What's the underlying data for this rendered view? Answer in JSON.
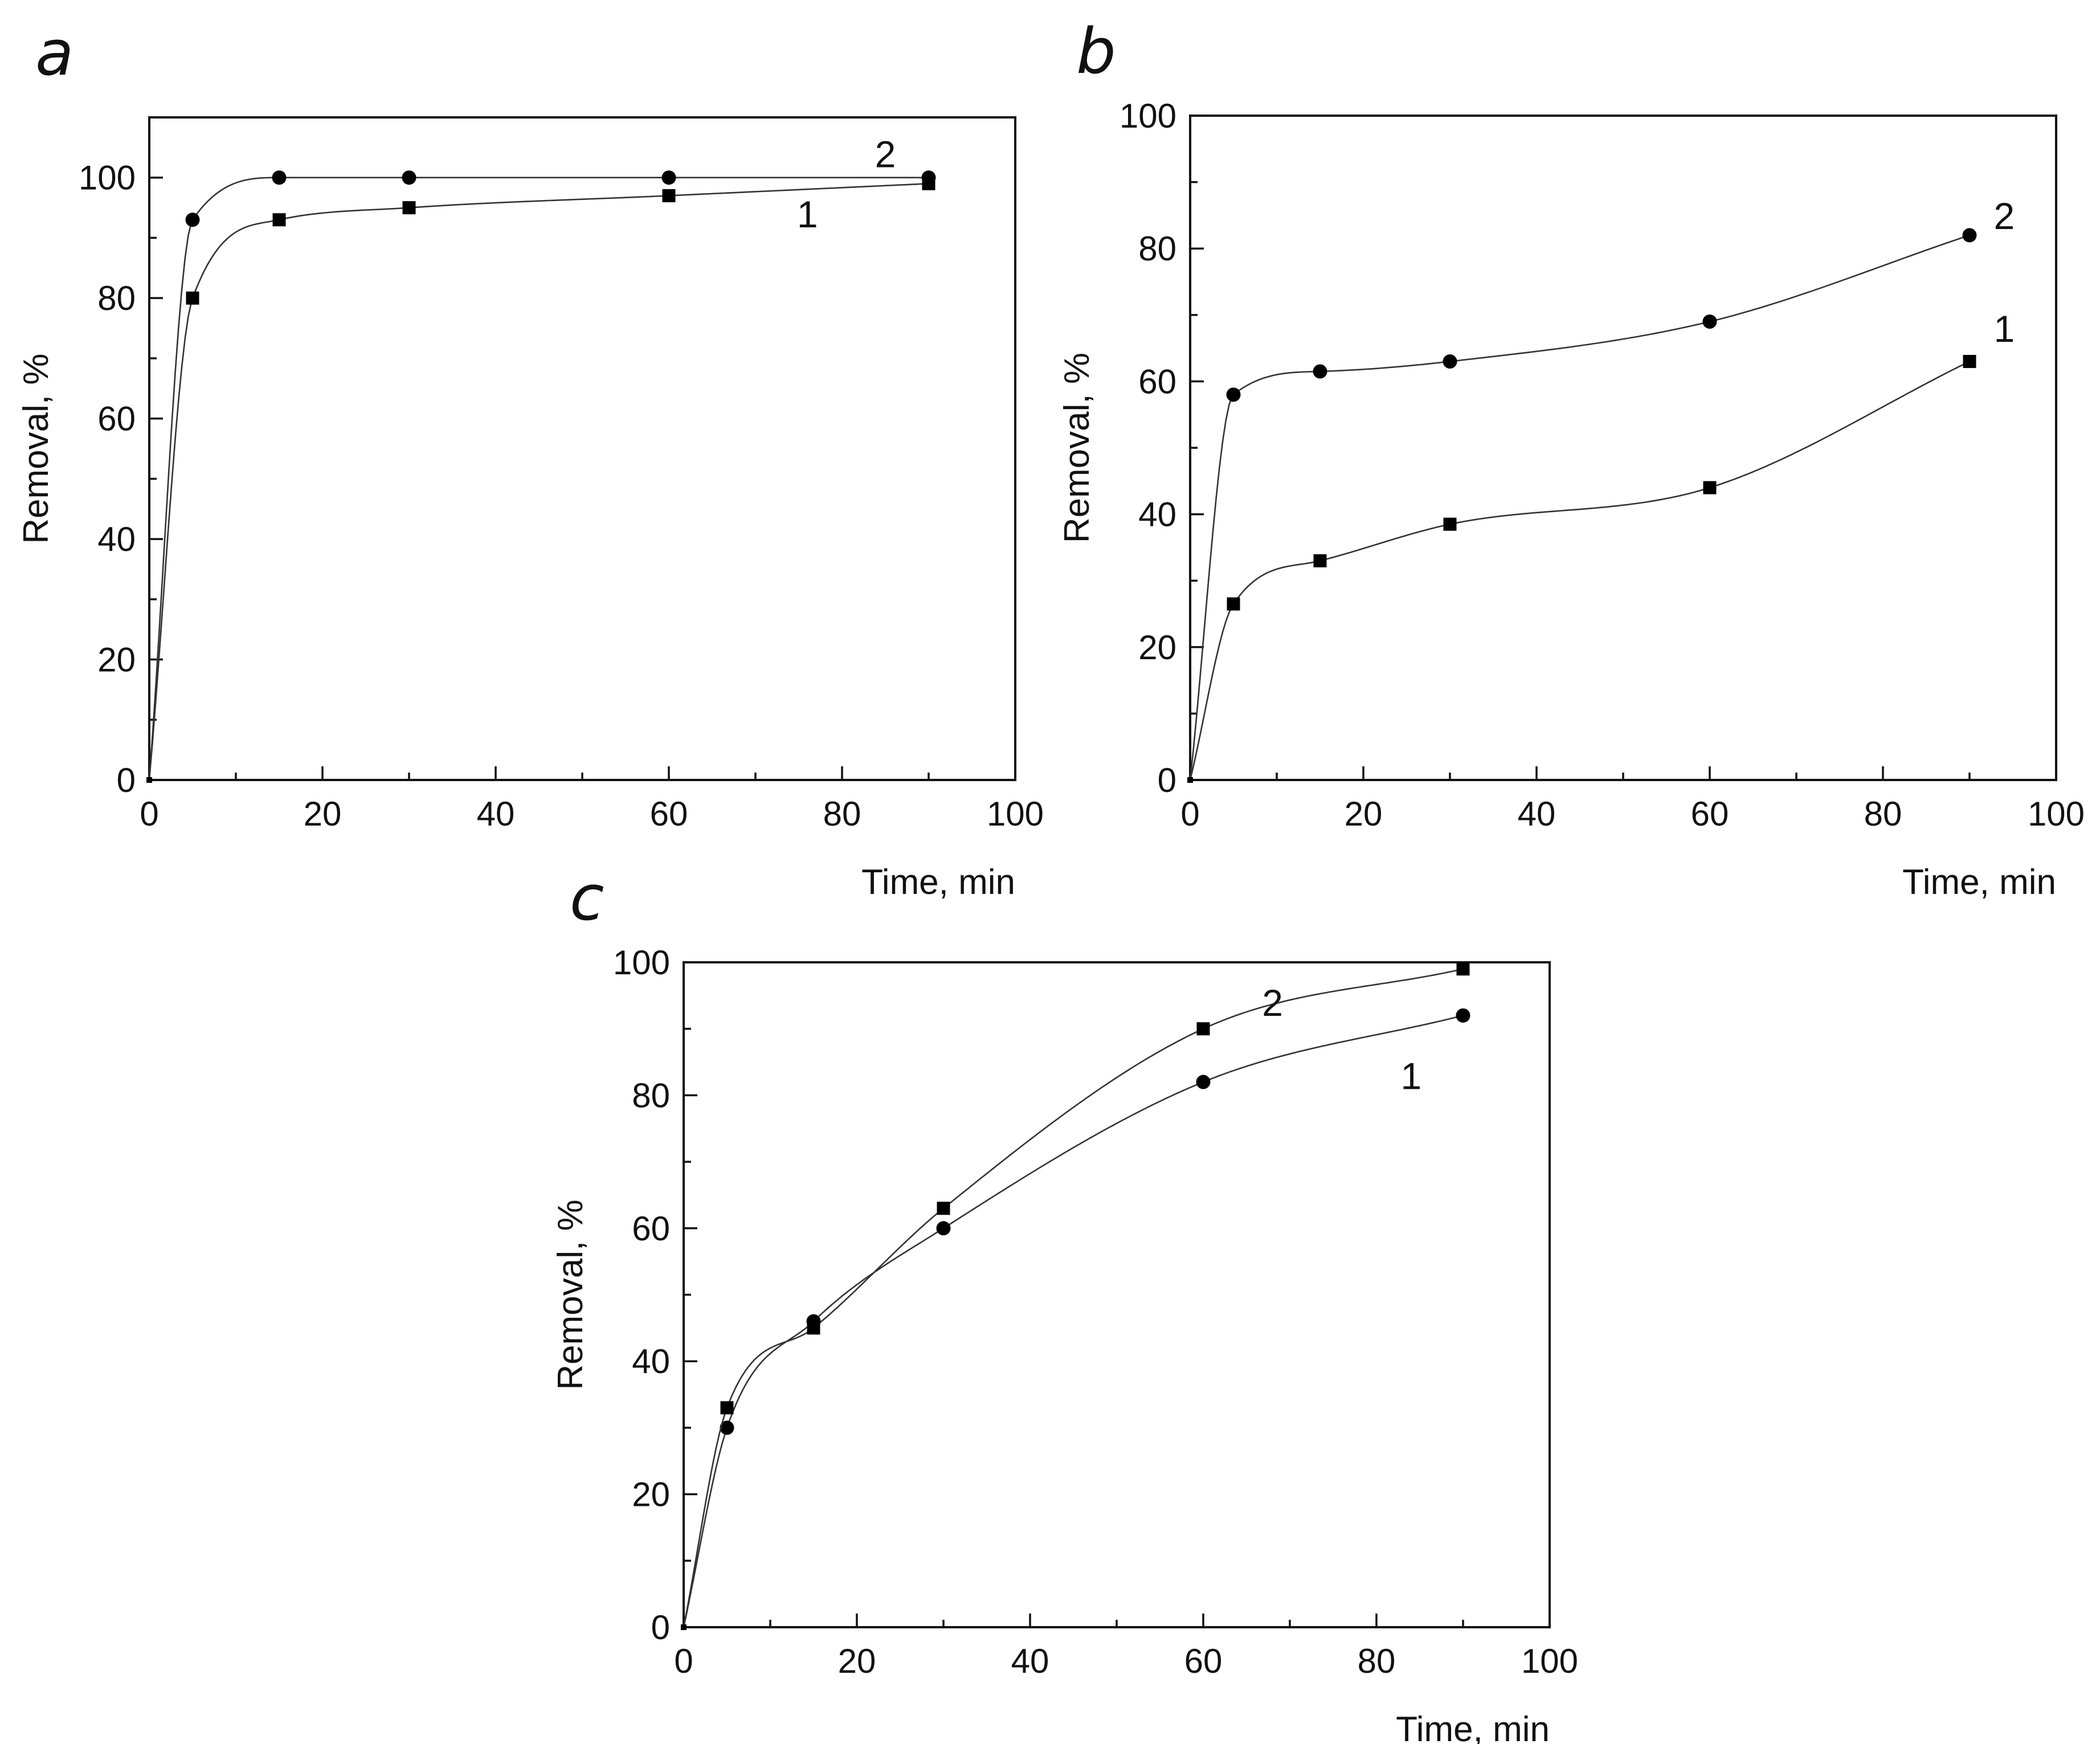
{
  "chart_data": [
    {
      "type": "scatter",
      "panel": "a",
      "xlabel": "Time, min",
      "ylabel": "Removal, %",
      "xlim": [
        0,
        100
      ],
      "ylim": [
        0,
        110
      ],
      "xticks": [
        0,
        20,
        40,
        60,
        80,
        100
      ],
      "yticks": [
        0,
        20,
        40,
        60,
        80,
        100
      ],
      "xtick_labels": [
        "0",
        "20",
        "40",
        "60",
        "80",
        "100"
      ],
      "ytick_labels": [
        "0",
        "20",
        "40",
        "60",
        "80",
        "100"
      ],
      "series": [
        {
          "name": "1",
          "marker": "square",
          "x": [
            0,
            5,
            15,
            30,
            60,
            90
          ],
          "y": [
            0,
            80,
            93,
            95,
            97,
            99
          ],
          "label_at": [
            76,
            94
          ]
        },
        {
          "name": "2",
          "marker": "circle",
          "x": [
            0,
            5,
            15,
            30,
            60,
            90
          ],
          "y": [
            0,
            93,
            100,
            100,
            100,
            100
          ],
          "label_at": [
            85,
            104
          ]
        }
      ]
    },
    {
      "type": "scatter",
      "panel": "b",
      "xlabel": "Time, min",
      "ylabel": "Removal, %",
      "xlim": [
        0,
        100
      ],
      "ylim": [
        0,
        100
      ],
      "xticks": [
        0,
        20,
        40,
        60,
        80,
        100
      ],
      "yticks": [
        0,
        20,
        40,
        60,
        80,
        100
      ],
      "xtick_labels": [
        "0",
        "20",
        "40",
        "60",
        "80",
        "100"
      ],
      "ytick_labels": [
        "0",
        "20",
        "40",
        "60",
        "80",
        "100"
      ],
      "series": [
        {
          "name": "1",
          "marker": "square",
          "x": [
            0,
            5,
            15,
            30,
            60,
            90
          ],
          "y": [
            0,
            26.5,
            33,
            38.5,
            44,
            63
          ],
          "label_at": [
            94,
            68
          ]
        },
        {
          "name": "2",
          "marker": "circle",
          "x": [
            0,
            5,
            15,
            30,
            60,
            90
          ],
          "y": [
            0,
            58,
            61.5,
            63,
            69,
            82
          ],
          "label_at": [
            94,
            85
          ]
        }
      ]
    },
    {
      "type": "scatter",
      "panel": "c",
      "xlabel": "Time, min",
      "ylabel": "Removal, %",
      "xlim": [
        0,
        100
      ],
      "ylim": [
        0,
        100
      ],
      "xticks": [
        0,
        20,
        40,
        60,
        80,
        100
      ],
      "yticks": [
        0,
        20,
        40,
        60,
        80,
        100
      ],
      "xtick_labels": [
        "0",
        "20",
        "40",
        "60",
        "80",
        "100"
      ],
      "ytick_labels": [
        "0",
        "20",
        "40",
        "60",
        "80",
        "100"
      ],
      "series": [
        {
          "name": "1",
          "marker": "circle",
          "x": [
            0,
            5,
            15,
            30,
            60,
            90
          ],
          "y": [
            0,
            30,
            46,
            60,
            82,
            92
          ],
          "label_at": [
            84,
            83
          ]
        },
        {
          "name": "2",
          "marker": "square",
          "x": [
            0,
            5,
            15,
            30,
            60,
            90
          ],
          "y": [
            0,
            33,
            45,
            63,
            90,
            99
          ],
          "label_at": [
            68,
            94
          ]
        }
      ]
    }
  ]
}
